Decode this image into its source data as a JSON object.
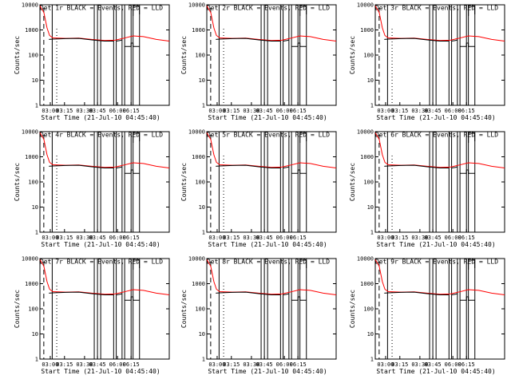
{
  "figure": {
    "background": "#ffffff",
    "event_color": "#000000",
    "lld_color": "#ff0000"
  },
  "chart_data": [
    {
      "type": "line",
      "title": "Det 1r BLACK = Events, RED = LLD",
      "xlabel": "Start Time (21-Jul-10 04:45:40)",
      "ylabel": "Counts/sec",
      "yscale": "log",
      "ylim": [
        1,
        10000
      ],
      "xlim": [
        "02:50",
        "06:22"
      ],
      "x_ticks": [
        "03:00",
        "03:15",
        "03:30",
        "03:45",
        "06:00",
        "06:15"
      ],
      "y_ticks": [
        "1",
        "10",
        "100",
        "1000",
        "10000"
      ]
    },
    {
      "type": "line",
      "title": "Det 2r BLACK = Events, RED = LLD",
      "xlabel": "Start Time (21-Jul-10 04:45:40)",
      "ylabel": "Counts/sec",
      "yscale": "log",
      "ylim": [
        1,
        10000
      ],
      "xlim": [
        "02:50",
        "06:22"
      ],
      "x_ticks": [
        "03:00",
        "03:15",
        "03:30",
        "03:45",
        "06:00",
        "06:15"
      ],
      "y_ticks": [
        "1",
        "10",
        "100",
        "1000",
        "10000"
      ]
    },
    {
      "type": "line",
      "title": "Det 3r BLACK = Events, RED = LLD",
      "xlabel": "Start Time (21-Jul-10 04:45:40)",
      "ylabel": "Counts/sec",
      "yscale": "log",
      "ylim": [
        1,
        10000
      ],
      "xlim": [
        "02:50",
        "06:22"
      ],
      "x_ticks": [
        "03:00",
        "03:15",
        "03:30",
        "03:45",
        "06:00",
        "06:15"
      ],
      "y_ticks": [
        "1",
        "10",
        "100",
        "1000",
        "10000"
      ]
    },
    {
      "type": "line",
      "title": "Det 4r BLACK = Events, RED = LLD",
      "xlabel": "Start Time (21-Jul-10 04:45:40)",
      "ylabel": "Counts/sec",
      "yscale": "log",
      "ylim": [
        1,
        10000
      ],
      "xlim": [
        "02:50",
        "06:22"
      ],
      "x_ticks": [
        "03:00",
        "03:15",
        "03:30",
        "03:45",
        "06:00",
        "06:15"
      ],
      "y_ticks": [
        "1",
        "10",
        "100",
        "1000",
        "10000"
      ]
    },
    {
      "type": "line",
      "title": "Det 5r BLACK = Events, RED = LLD",
      "xlabel": "Start Time (21-Jul-10 04:45:40)",
      "ylabel": "Counts/sec",
      "yscale": "log",
      "ylim": [
        1,
        10000
      ],
      "xlim": [
        "02:50",
        "06:22"
      ],
      "x_ticks": [
        "03:00",
        "03:15",
        "03:30",
        "03:45",
        "06:00",
        "06:15"
      ],
      "y_ticks": [
        "1",
        "10",
        "100",
        "1000",
        "10000"
      ]
    },
    {
      "type": "line",
      "title": "Det 6r BLACK = Events, RED = LLD",
      "xlabel": "Start Time (21-Jul-10 04:45:40)",
      "ylabel": "Counts/sec",
      "yscale": "log",
      "ylim": [
        1,
        10000
      ],
      "xlim": [
        "02:50",
        "06:22"
      ],
      "x_ticks": [
        "03:00",
        "03:15",
        "03:30",
        "03:45",
        "06:00",
        "06:15"
      ],
      "y_ticks": [
        "1",
        "10",
        "100",
        "1000",
        "10000"
      ]
    },
    {
      "type": "line",
      "title": "Det 7r BLACK = Events, RED = LLD",
      "xlabel": "Start Time (21-Jul-10 04:45:40)",
      "ylabel": "Counts/sec",
      "yscale": "log",
      "ylim": [
        1,
        10000
      ],
      "xlim": [
        "02:50",
        "06:22"
      ],
      "x_ticks": [
        "03:00",
        "03:15",
        "03:30",
        "03:45",
        "06:00",
        "06:15"
      ],
      "y_ticks": [
        "1",
        "10",
        "100",
        "1000",
        "10000"
      ]
    },
    {
      "type": "line",
      "title": "Det 8r BLACK = Events, RED = LLD",
      "xlabel": "Start Time (21-Jul-10 04:45:40)",
      "ylabel": "Counts/sec",
      "yscale": "log",
      "ylim": [
        1,
        10000
      ],
      "xlim": [
        "02:50",
        "06:22"
      ],
      "x_ticks": [
        "03:00",
        "03:15",
        "03:30",
        "03:45",
        "06:00",
        "06:15"
      ],
      "y_ticks": [
        "1",
        "10",
        "100",
        "1000",
        "10000"
      ]
    },
    {
      "type": "line",
      "title": "Det 9r BLACK = Events, RED = LLD",
      "xlabel": "Start Time (21-Jul-10 04:45:40)",
      "ylabel": "Counts/sec",
      "yscale": "log",
      "ylim": [
        1,
        10000
      ],
      "xlim": [
        "02:50",
        "06:22"
      ],
      "x_ticks": [
        "03:00",
        "03:15",
        "03:30",
        "03:45",
        "06:00",
        "06:15"
      ],
      "y_ticks": [
        "1",
        "10",
        "100",
        "1000",
        "10000"
      ]
    }
  ]
}
